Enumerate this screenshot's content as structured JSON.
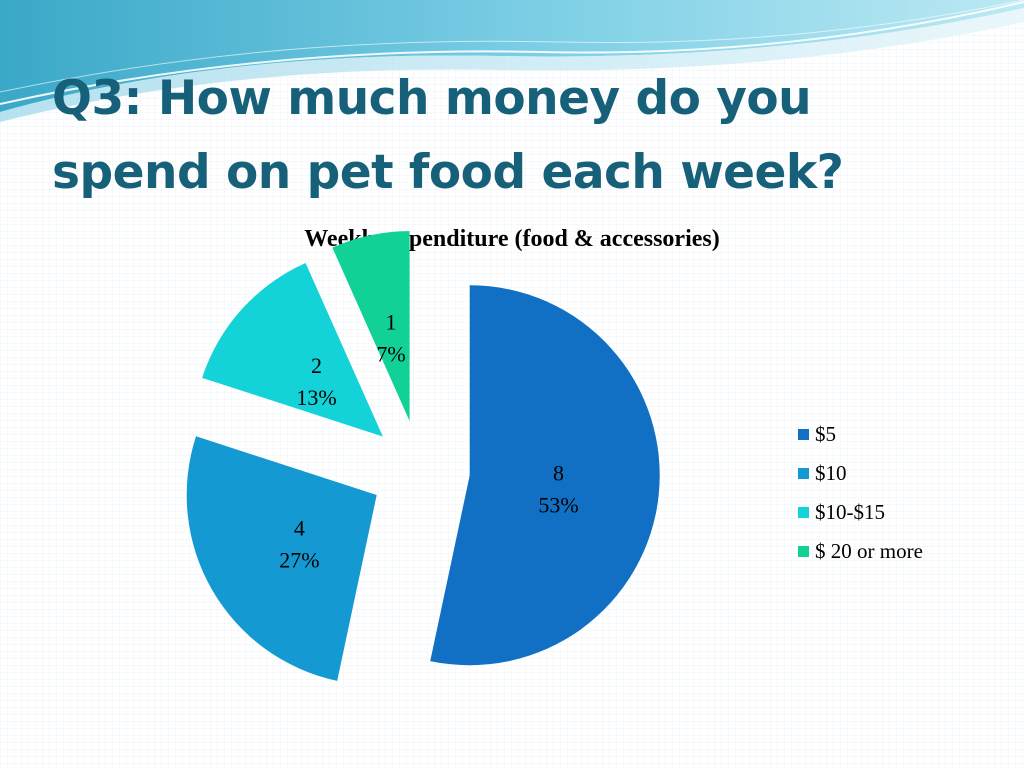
{
  "slide": {
    "title_line1": "Q3: How much money do you",
    "title_line2": "spend on pet food each week?"
  },
  "chart_data": {
    "type": "pie",
    "title": "Weekly expenditure (food & accessories)",
    "categories": [
      "$5",
      "$10",
      "$10-$15",
      "$ 20 or more"
    ],
    "values": [
      8,
      4,
      2,
      1
    ],
    "percent_labels": [
      "53%",
      "27%",
      "13%",
      "7%"
    ],
    "colors": [
      "#1170c4",
      "#1499d2",
      "#13d2d8",
      "#12d197"
    ],
    "exploded": true,
    "start_angle": "12 o'clock",
    "direction": "clockwise",
    "legend_position": "right"
  },
  "theme": {
    "title_color": "#17607a"
  }
}
